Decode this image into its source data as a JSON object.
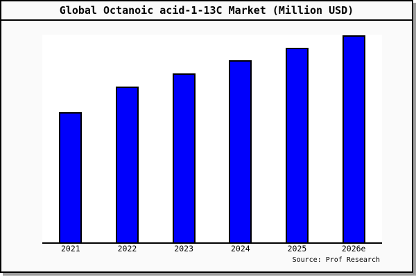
{
  "title": "Global Octanoic acid-1-13C Market (Million USD)",
  "source": "Source: Prof Research",
  "colors": {
    "bar_fill": "#0000fc",
    "bar_border": "#000000",
    "figure_background": "#fafafa",
    "plot_background": "#ffffff",
    "figure_border": "#000000",
    "shadow": "#9c9c9c",
    "text": "#000000"
  },
  "chart_data": {
    "type": "bar",
    "title": "Global Octanoic acid-1-13C Market (Million USD)",
    "categories": [
      "2021",
      "2022",
      "2023",
      "2024",
      "2025",
      "2026e"
    ],
    "values": [
      62.7,
      75.0,
      81.3,
      87.7,
      93.7,
      99.8
    ],
    "values_unit": "relative height, % of plot scale (no numeric y-axis shown in chart)",
    "xlabel": "",
    "ylabel": "",
    "ylim": [
      0,
      100
    ],
    "grid": false,
    "legend": "none",
    "y_axis_visible": false,
    "source": "Source: Prof Research"
  }
}
